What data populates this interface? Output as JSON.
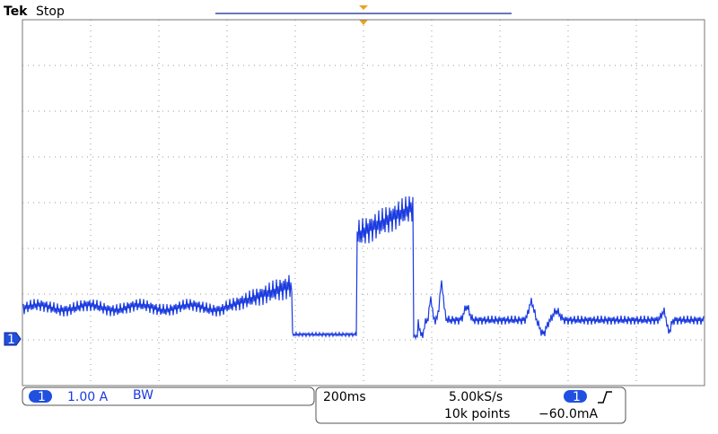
{
  "header": {
    "brand": "Tek",
    "status": "Stop"
  },
  "channel": {
    "marker": "1",
    "scale": "1.00 A",
    "bandwidth": "BW"
  },
  "timebase": {
    "scale": "200ms",
    "sample_rate": "5.00kS/s",
    "record_length": "10k points"
  },
  "trigger": {
    "source": "1",
    "level": "−60.0mA"
  }
}
